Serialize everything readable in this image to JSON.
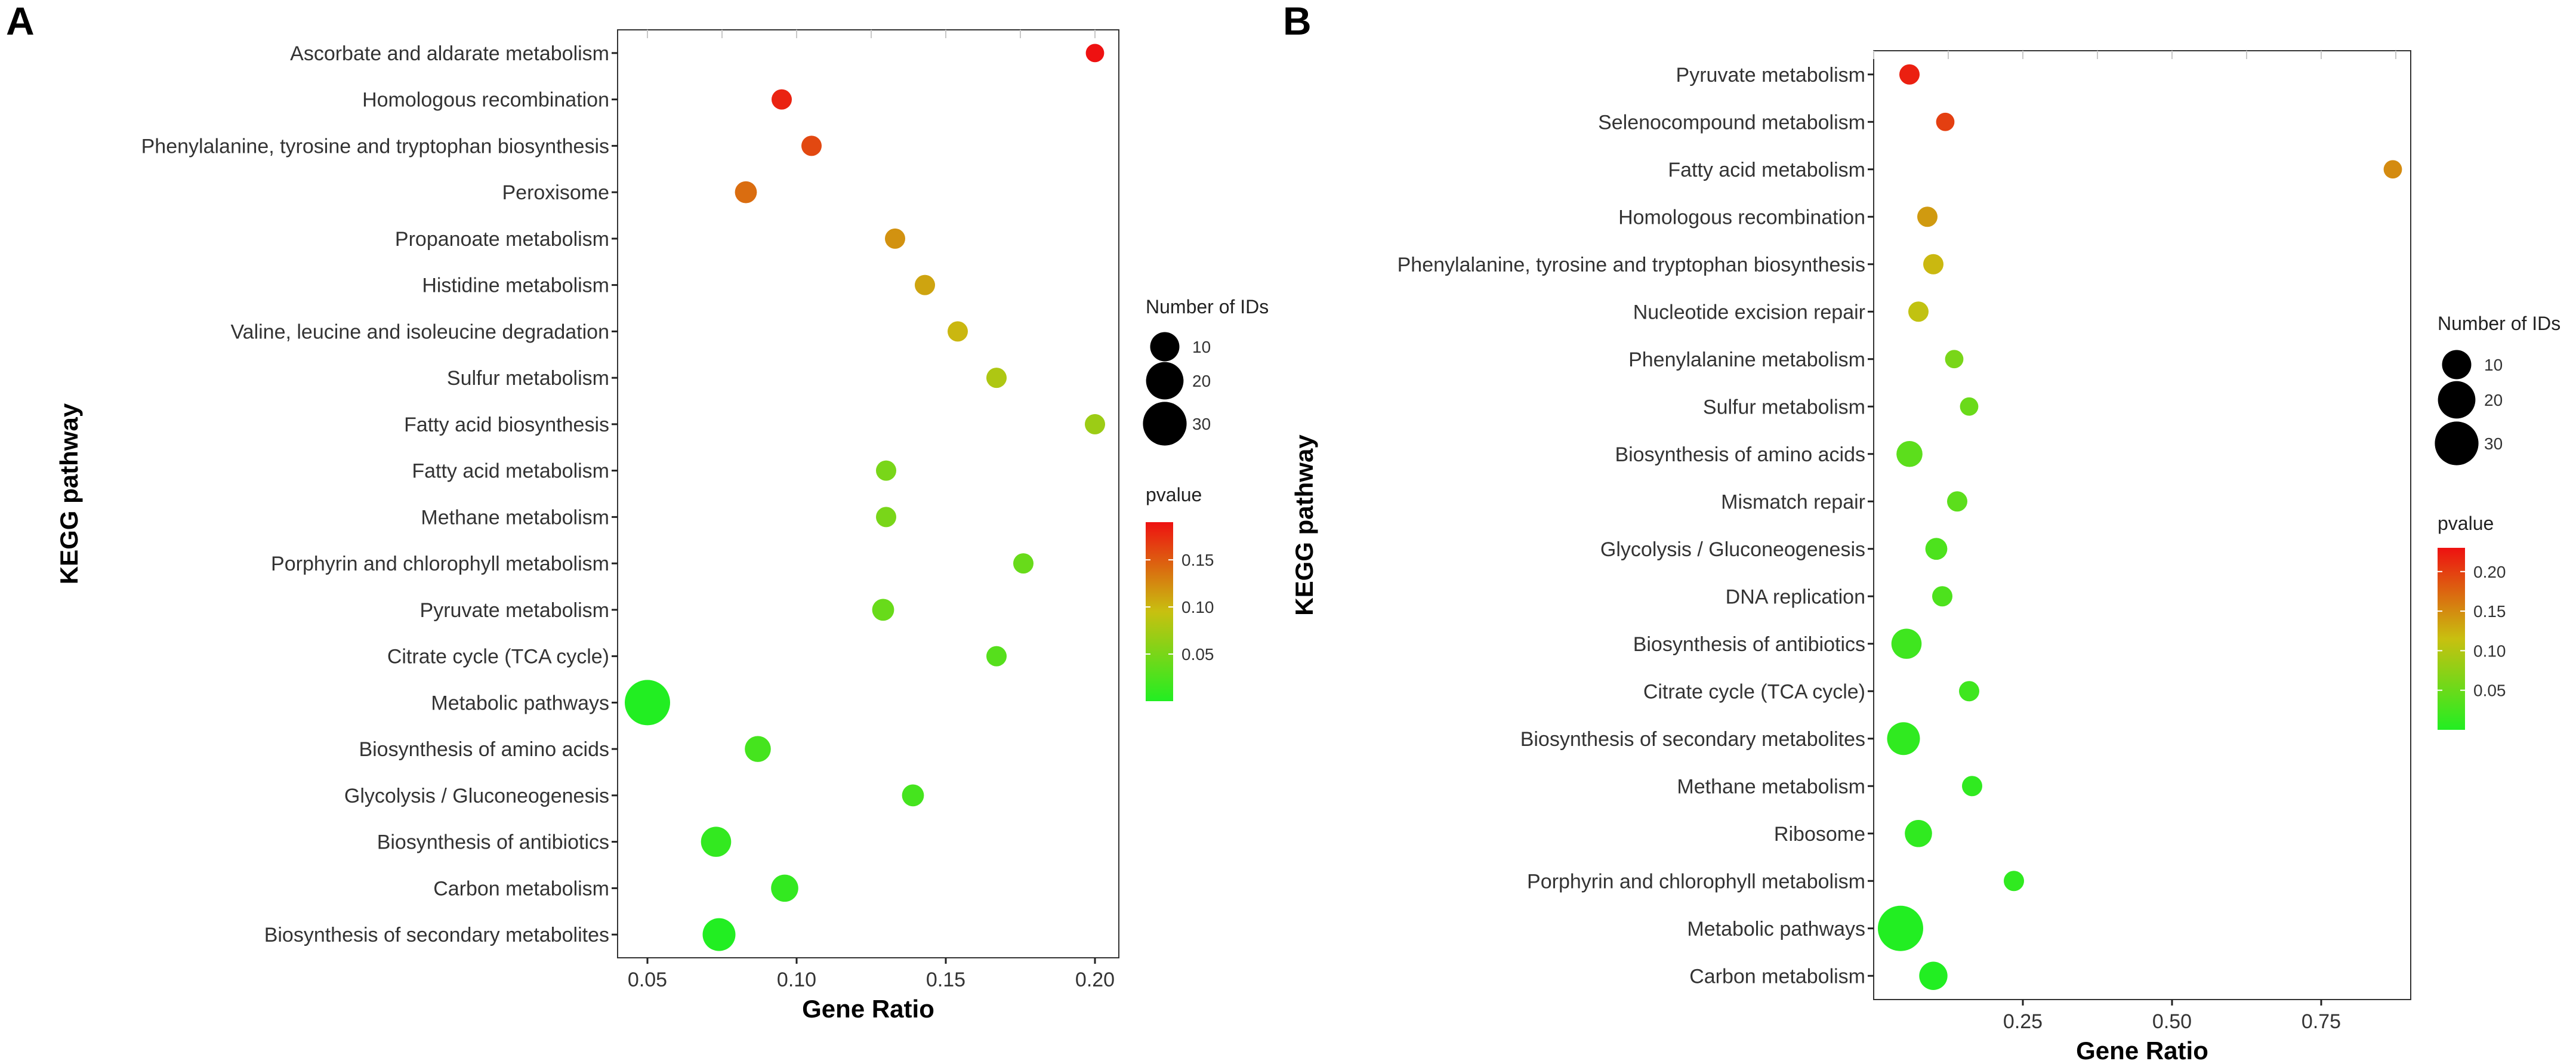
{
  "colors": {
    "low": "#22ee22",
    "mid": "#c8c010",
    "high": "#ee1111",
    "axis": "#222222",
    "grid": "#c8c8c8"
  },
  "legend_titles": {
    "size": "Number of IDs",
    "color": "pvalue"
  },
  "chart_data": [
    {
      "type": "scatter",
      "panel_label": "A",
      "title": "",
      "xlabel": "Gene Ratio",
      "ylabel": "KEGG pathway",
      "xlim": [
        0.04,
        0.208
      ],
      "xticks": [
        0.05,
        0.1,
        0.15,
        0.2
      ],
      "xtick_labels": [
        "0.05",
        "0.10",
        "0.15",
        "0.20"
      ],
      "size_legend": [
        10,
        20,
        30
      ],
      "color_range": [
        0.0,
        0.19
      ],
      "color_ticks": [
        0.05,
        0.1,
        0.15
      ],
      "color_tick_labels": [
        "0.05",
        "0.10",
        "0.15"
      ],
      "points": [
        {
          "pathway": "Ascorbate and aldarate metabolism",
          "gene_ratio": 0.2,
          "count": 2,
          "pvalue": 0.19
        },
        {
          "pathway": "Homologous recombination",
          "gene_ratio": 0.095,
          "count": 3,
          "pvalue": 0.18
        },
        {
          "pathway": "Phenylalanine, tyrosine and tryptophan biosynthesis",
          "gene_ratio": 0.105,
          "count": 3,
          "pvalue": 0.16
        },
        {
          "pathway": "Peroxisome",
          "gene_ratio": 0.083,
          "count": 4,
          "pvalue": 0.14
        },
        {
          "pathway": "Propanoate metabolism",
          "gene_ratio": 0.133,
          "count": 3,
          "pvalue": 0.12
        },
        {
          "pathway": "Histidine metabolism",
          "gene_ratio": 0.143,
          "count": 3,
          "pvalue": 0.11
        },
        {
          "pathway": "Valine, leucine and isoleucine degradation",
          "gene_ratio": 0.154,
          "count": 3,
          "pvalue": 0.1
        },
        {
          "pathway": "Sulfur metabolism",
          "gene_ratio": 0.167,
          "count": 3,
          "pvalue": 0.08
        },
        {
          "pathway": "Fatty acid biosynthesis",
          "gene_ratio": 0.2,
          "count": 3,
          "pvalue": 0.07
        },
        {
          "pathway": "Fatty acid metabolism",
          "gene_ratio": 0.13,
          "count": 3,
          "pvalue": 0.05
        },
        {
          "pathway": "Methane metabolism",
          "gene_ratio": 0.13,
          "count": 3,
          "pvalue": 0.05
        },
        {
          "pathway": "Porphyrin and chlorophyll metabolism",
          "gene_ratio": 0.176,
          "count": 3,
          "pvalue": 0.04
        },
        {
          "pathway": "Pyruvate metabolism",
          "gene_ratio": 0.129,
          "count": 4,
          "pvalue": 0.04
        },
        {
          "pathway": "Citrate cycle (TCA cycle)",
          "gene_ratio": 0.167,
          "count": 3,
          "pvalue": 0.03
        },
        {
          "pathway": "Metabolic pathways",
          "gene_ratio": 0.05,
          "count": 33,
          "pvalue": 0.0
        },
        {
          "pathway": "Biosynthesis of amino acids",
          "gene_ratio": 0.087,
          "count": 7,
          "pvalue": 0.02
        },
        {
          "pathway": "Glycolysis / Gluconeogenesis",
          "gene_ratio": 0.139,
          "count": 4,
          "pvalue": 0.02
        },
        {
          "pathway": "Biosynthesis of antibiotics",
          "gene_ratio": 0.073,
          "count": 11,
          "pvalue": 0.01
        },
        {
          "pathway": "Carbon metabolism",
          "gene_ratio": 0.096,
          "count": 8,
          "pvalue": 0.01
        },
        {
          "pathway": "Biosynthesis of secondary metabolites",
          "gene_ratio": 0.074,
          "count": 14,
          "pvalue": 0.0
        }
      ]
    },
    {
      "type": "scatter",
      "panel_label": "B",
      "title": "",
      "xlabel": "Gene Ratio",
      "ylabel": "KEGG pathway",
      "xlim": [
        0.0,
        0.9
      ],
      "xticks": [
        0.25,
        0.5,
        0.75
      ],
      "xtick_labels": [
        "0.25",
        "0.50",
        "0.75"
      ],
      "size_legend": [
        10,
        20,
        30
      ],
      "color_range": [
        0.0,
        0.23
      ],
      "color_ticks": [
        0.05,
        0.1,
        0.15,
        0.2
      ],
      "color_tick_labels": [
        "0.05",
        "0.10",
        "0.15",
        "0.20"
      ],
      "points": [
        {
          "pathway": "Pyruvate metabolism",
          "gene_ratio": 0.06,
          "count": 3,
          "pvalue": 0.22
        },
        {
          "pathway": "Selenocompound metabolism",
          "gene_ratio": 0.12,
          "count": 2,
          "pvalue": 0.2
        },
        {
          "pathway": "Fatty acid metabolism",
          "gene_ratio": 0.87,
          "count": 2,
          "pvalue": 0.15
        },
        {
          "pathway": "Homologous recombination",
          "gene_ratio": 0.09,
          "count": 3,
          "pvalue": 0.14
        },
        {
          "pathway": "Phenylalanine, tyrosine and tryptophan biosynthesis",
          "gene_ratio": 0.1,
          "count": 3,
          "pvalue": 0.12
        },
        {
          "pathway": "Nucleotide excision repair",
          "gene_ratio": 0.075,
          "count": 3,
          "pvalue": 0.11
        },
        {
          "pathway": "Phenylalanine metabolism",
          "gene_ratio": 0.135,
          "count": 2,
          "pvalue": 0.06
        },
        {
          "pathway": "Sulfur metabolism",
          "gene_ratio": 0.16,
          "count": 2,
          "pvalue": 0.05
        },
        {
          "pathway": "Biosynthesis of amino acids",
          "gene_ratio": 0.06,
          "count": 7,
          "pvalue": 0.04
        },
        {
          "pathway": "Mismatch repair",
          "gene_ratio": 0.14,
          "count": 3,
          "pvalue": 0.04
        },
        {
          "pathway": "Glycolysis / Gluconeogenesis",
          "gene_ratio": 0.105,
          "count": 4,
          "pvalue": 0.03
        },
        {
          "pathway": "DNA replication",
          "gene_ratio": 0.115,
          "count": 3,
          "pvalue": 0.03
        },
        {
          "pathway": "Biosynthesis of antibiotics",
          "gene_ratio": 0.055,
          "count": 11,
          "pvalue": 0.02
        },
        {
          "pathway": "Citrate cycle (TCA cycle)",
          "gene_ratio": 0.16,
          "count": 3,
          "pvalue": 0.02
        },
        {
          "pathway": "Biosynthesis of secondary metabolites",
          "gene_ratio": 0.05,
          "count": 14,
          "pvalue": 0.01
        },
        {
          "pathway": "Methane metabolism",
          "gene_ratio": 0.165,
          "count": 3,
          "pvalue": 0.01
        },
        {
          "pathway": "Ribosome",
          "gene_ratio": 0.075,
          "count": 8,
          "pvalue": 0.01
        },
        {
          "pathway": "Porphyrin and chlorophyll metabolism",
          "gene_ratio": 0.235,
          "count": 3,
          "pvalue": 0.01
        },
        {
          "pathway": "Metabolic pathways",
          "gene_ratio": 0.045,
          "count": 33,
          "pvalue": 0.0
        },
        {
          "pathway": "Carbon metabolism",
          "gene_ratio": 0.1,
          "count": 9,
          "pvalue": 0.0
        }
      ]
    }
  ]
}
